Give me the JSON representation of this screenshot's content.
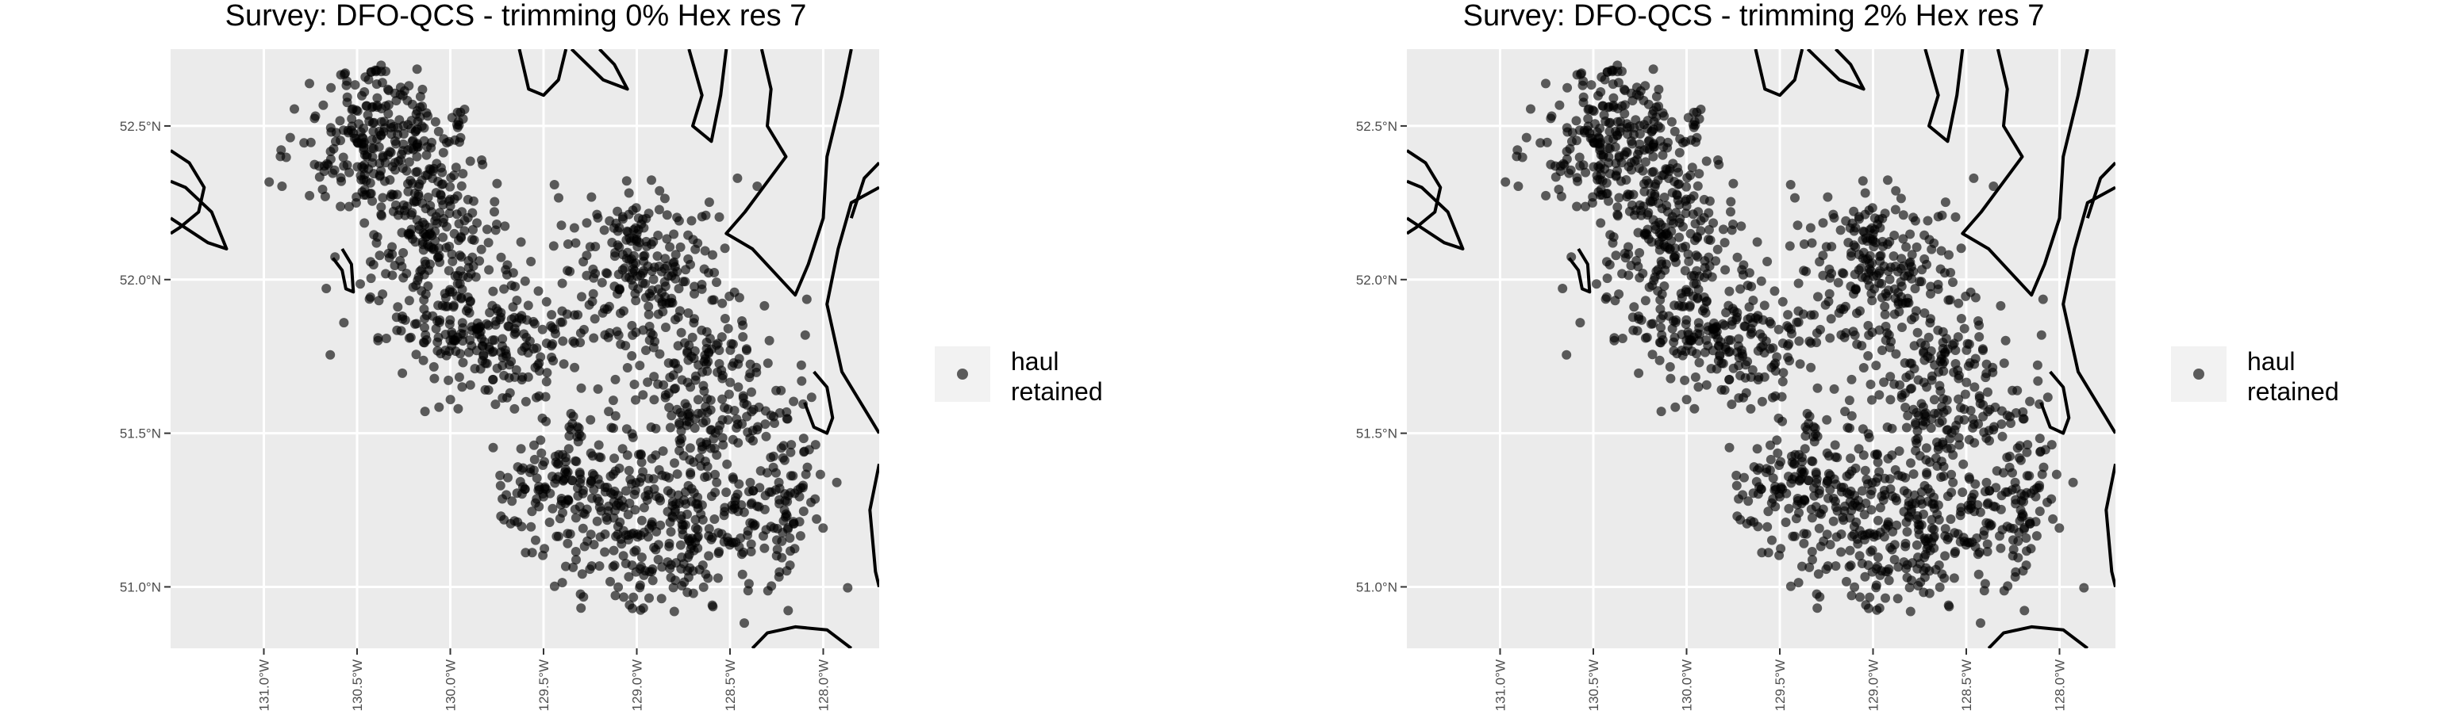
{
  "chart_data": [
    {
      "type": "scatter",
      "title": "Survey: DFO-QCS - trimming 0% Hex res 7",
      "xlabel": "",
      "ylabel": "",
      "x_ticks": [
        "131.0°W",
        "130.5°W",
        "130.0°W",
        "129.5°W",
        "129.0°W",
        "128.5°W",
        "128.0°W"
      ],
      "x_tick_values": [
        -131.0,
        -130.5,
        -130.0,
        -129.5,
        -129.0,
        -128.5,
        -128.0
      ],
      "y_ticks": [
        "51.0°N",
        "51.5°N",
        "52.0°N",
        "52.5°N"
      ],
      "y_tick_values": [
        51.0,
        51.5,
        52.0,
        52.5
      ],
      "xlim": [
        -131.5,
        -127.7
      ],
      "ylim": [
        50.8,
        52.75
      ],
      "legend": {
        "placement": "right",
        "label": "haul\nretained"
      },
      "grid": true,
      "point_color": "#000000"
    },
    {
      "type": "scatter",
      "title": "Survey: DFO-QCS - trimming 2% Hex res 7",
      "xlabel": "",
      "ylabel": "",
      "x_ticks": [
        "131.0°W",
        "130.5°W",
        "130.0°W",
        "129.5°W",
        "129.0°W",
        "128.5°W",
        "128.0°W"
      ],
      "x_tick_values": [
        -131.0,
        -130.5,
        -130.0,
        -129.5,
        -129.0,
        -128.5,
        -128.0
      ],
      "y_ticks": [
        "51.0°N",
        "51.5°N",
        "52.0°N",
        "52.5°N"
      ],
      "y_tick_values": [
        51.0,
        51.5,
        52.0,
        52.5
      ],
      "xlim": [
        -131.5,
        -127.7
      ],
      "ylim": [
        50.8,
        52.75
      ],
      "legend": {
        "placement": "right",
        "label": "haul\nretained"
      },
      "grid": true,
      "point_color": "#000000"
    }
  ],
  "clusters": [
    {
      "lon": -130.4,
      "lat": 52.45,
      "sd_lon": 0.22,
      "sd_lat": 0.12,
      "n": 260
    },
    {
      "lon": -130.1,
      "lat": 52.15,
      "sd_lon": 0.18,
      "sd_lat": 0.13,
      "n": 200
    },
    {
      "lon": -129.8,
      "lat": 51.8,
      "sd_lon": 0.28,
      "sd_lat": 0.1,
      "n": 230
    },
    {
      "lon": -128.95,
      "lat": 52.05,
      "sd_lon": 0.22,
      "sd_lat": 0.14,
      "n": 220
    },
    {
      "lon": -128.7,
      "lat": 51.65,
      "sd_lon": 0.18,
      "sd_lat": 0.16,
      "n": 170
    },
    {
      "lon": -128.8,
      "lat": 51.2,
      "sd_lon": 0.32,
      "sd_lat": 0.14,
      "n": 320
    },
    {
      "lon": -129.4,
      "lat": 51.35,
      "sd_lon": 0.18,
      "sd_lat": 0.12,
      "n": 140
    },
    {
      "lon": -128.25,
      "lat": 51.35,
      "sd_lon": 0.12,
      "sd_lat": 0.2,
      "n": 110
    }
  ]
}
